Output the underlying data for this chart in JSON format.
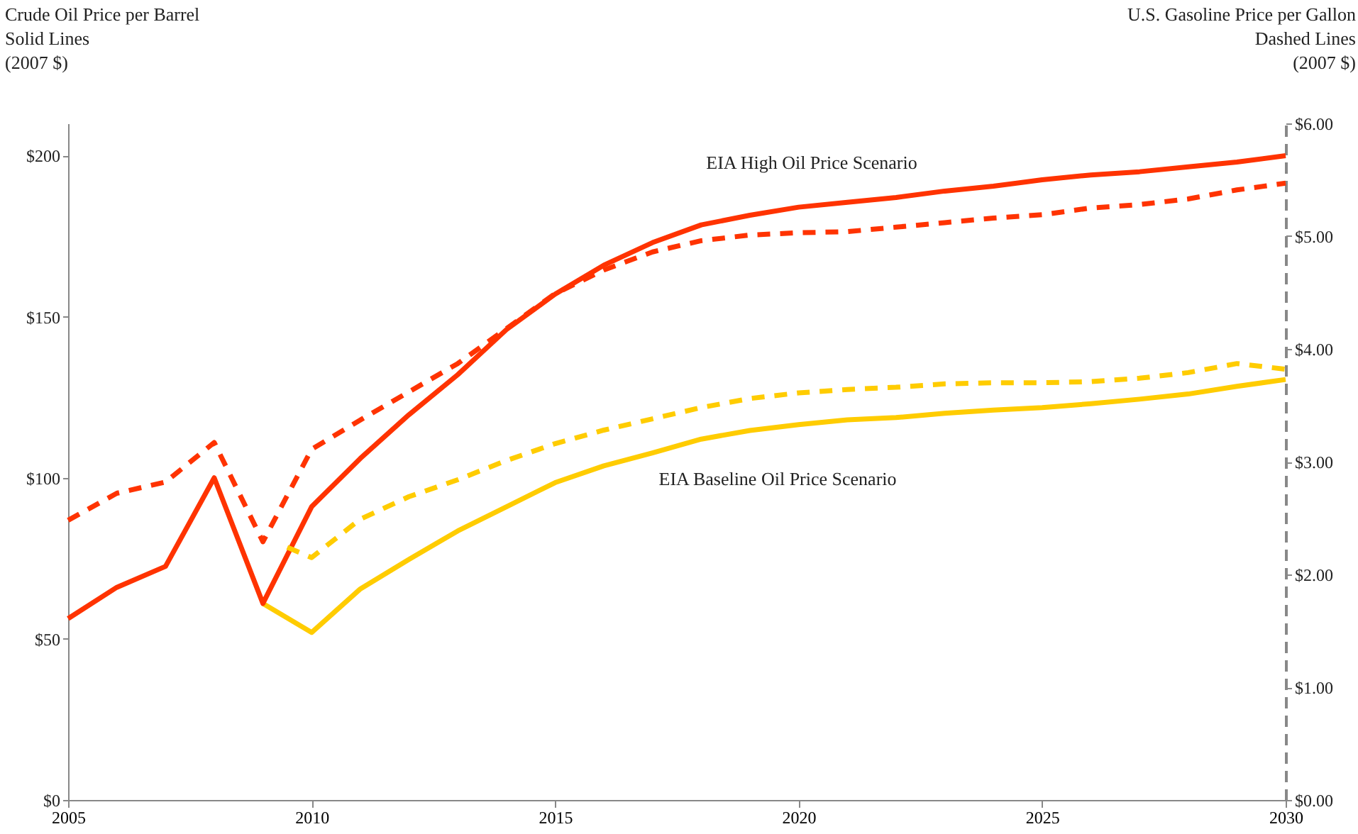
{
  "chart_data": {
    "type": "line",
    "ylabel": "Crude Oil Price per Barrel\nSolid Lines\n(2007 $)",
    "y2label": "U.S. Gasoline Price per Gallon\nDashed Lines\n(2007 $)",
    "annotations": [
      "EIA High Oil Price Scenario",
      "EIA Baseline Oil Price Scenario"
    ],
    "xlim": [
      2005,
      2030
    ],
    "xticks": [
      2005,
      2010,
      2015,
      2020,
      2025,
      2030
    ],
    "ylim": [
      0,
      210
    ],
    "yticks": [
      {
        "value": 0,
        "label": "$0"
      },
      {
        "value": 50,
        "label": "$50"
      },
      {
        "value": 100,
        "label": "$100"
      },
      {
        "value": 150,
        "label": "$150"
      },
      {
        "value": 200,
        "label": "$200"
      }
    ],
    "y2lim": [
      0,
      6
    ],
    "y2ticks": [
      {
        "value": 0,
        "label": "$0.00"
      },
      {
        "value": 1,
        "label": "$1.00"
      },
      {
        "value": 2,
        "label": "$2.00"
      },
      {
        "value": 3,
        "label": "$3.00"
      },
      {
        "value": 4,
        "label": "$4.00"
      },
      {
        "value": 5,
        "label": "$5.00"
      },
      {
        "value": 6,
        "label": "$6.00"
      }
    ],
    "grid": false,
    "series": [
      {
        "color": "#ff3300",
        "line_style": "dashed",
        "axis": "y2",
        "x": [
          2005,
          2006,
          2007,
          2008,
          2009,
          2010,
          2011,
          2012,
          2013,
          2014,
          2015,
          2016,
          2017,
          2018,
          2019,
          2020,
          2021,
          2022,
          2023,
          2024,
          2025,
          2026,
          2027,
          2028,
          2029,
          2030
        ],
        "values": [
          2.48,
          2.72,
          2.82,
          3.17,
          2.29,
          3.11,
          3.37,
          3.62,
          3.87,
          4.18,
          4.49,
          4.7,
          4.86,
          4.96,
          5.01,
          5.03,
          5.04,
          5.08,
          5.12,
          5.16,
          5.19,
          5.25,
          5.28,
          5.33,
          5.41,
          5.47
        ]
      },
      {
        "color": "#ffcc00",
        "line_style": "dashed",
        "axis": "y2",
        "x": [
          2009.5,
          2010,
          2011,
          2012,
          2013,
          2014,
          2015,
          2016,
          2017,
          2018,
          2019,
          2020,
          2021,
          2022,
          2023,
          2024,
          2025,
          2026,
          2027,
          2028,
          2029,
          2030
        ],
        "values": [
          2.24,
          2.15,
          2.49,
          2.69,
          2.84,
          3.01,
          3.16,
          3.28,
          3.38,
          3.48,
          3.56,
          3.61,
          3.64,
          3.66,
          3.69,
          3.7,
          3.7,
          3.71,
          3.74,
          3.79,
          3.87,
          3.82
        ]
      },
      {
        "color": "#ffcc00",
        "line_style": "solid",
        "x": [
          2009,
          2010,
          2011,
          2012,
          2013,
          2014,
          2015,
          2016,
          2017,
          2018,
          2019,
          2020,
          2021,
          2022,
          2023,
          2024,
          2025,
          2026,
          2027,
          2028,
          2029,
          2030
        ],
        "values": [
          61,
          52,
          65.5,
          74.7,
          83.5,
          91,
          98.5,
          103.7,
          107.7,
          112,
          114.7,
          116.5,
          118,
          118.7,
          120,
          121,
          121.8,
          123,
          124.4,
          126,
          128.4,
          130.5
        ]
      },
      {
        "color": "#ff3300",
        "line_style": "solid",
        "x": [
          2005,
          2006,
          2007,
          2008,
          2009,
          2010,
          2011,
          2012,
          2013,
          2014,
          2015,
          2016,
          2017,
          2018,
          2019,
          2020,
          2021,
          2022,
          2023,
          2024,
          2025,
          2026,
          2027,
          2028,
          2029,
          2030
        ],
        "values": [
          56.3,
          66,
          72.5,
          100,
          61,
          91,
          106,
          119.6,
          132,
          146,
          157,
          166,
          173,
          178.5,
          181.5,
          184,
          185.5,
          187,
          189,
          190.5,
          192.5,
          194,
          195,
          196.5,
          198,
          200
        ]
      }
    ]
  }
}
